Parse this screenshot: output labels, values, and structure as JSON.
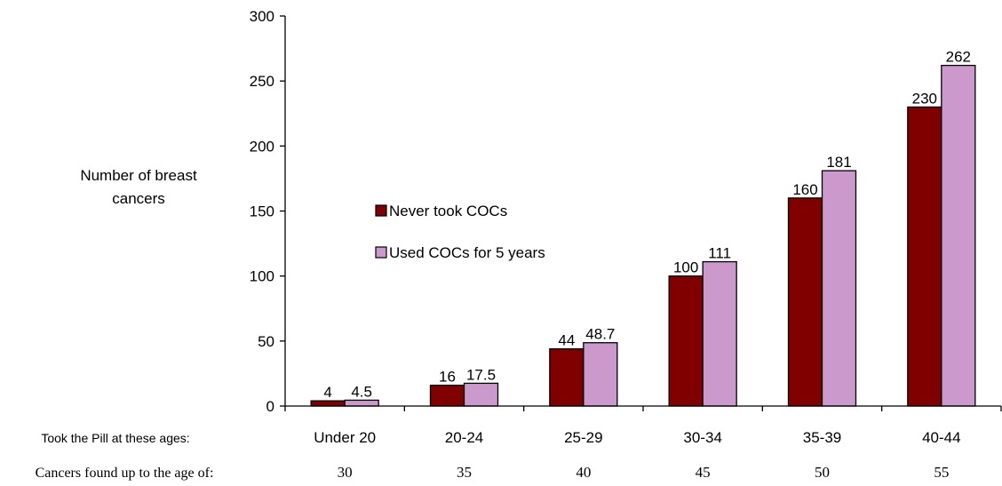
{
  "chart_data": {
    "type": "bar",
    "ylabel_lines": [
      "Number of breast",
      "cancers"
    ],
    "categories": [
      "Under 20",
      "20-24",
      "25-29",
      "30-34",
      "35-39",
      "40-44"
    ],
    "series": [
      {
        "name": "Never took COCs",
        "values": [
          4,
          16,
          44,
          100,
          160,
          230
        ],
        "labels": [
          "4",
          "16",
          "44",
          "100",
          "160",
          "230"
        ],
        "color": "#800000"
      },
      {
        "name": "Used COCs for 5 years",
        "values": [
          4.5,
          17.5,
          48.7,
          111,
          181,
          262
        ],
        "labels": [
          "4.5",
          "17.5",
          "48.7",
          "111",
          "181",
          "262"
        ],
        "color": "#cc99cc"
      }
    ],
    "ylim": [
      0,
      300
    ],
    "yticks": [
      "0",
      "50",
      "100",
      "150",
      "200",
      "250",
      "300"
    ],
    "legend_position": "center-left",
    "grid": false,
    "row_labels": {
      "took_pill": "Took the Pill at these ages:",
      "cancers_found": "Cancers found up to the age of:"
    },
    "cancers_found_ages": [
      "30",
      "35",
      "40",
      "45",
      "50",
      "55"
    ]
  }
}
